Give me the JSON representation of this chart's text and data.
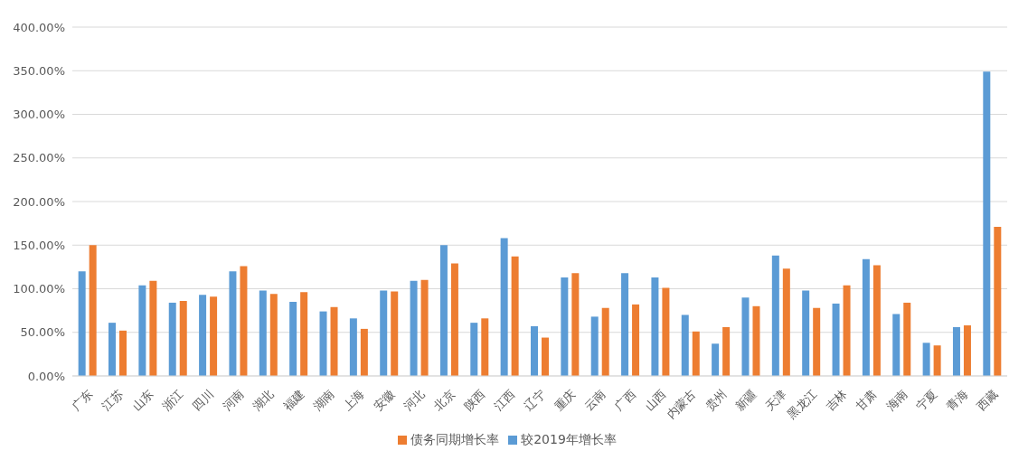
{
  "chart_data": {
    "type": "bar",
    "categories": [
      "广东",
      "江苏",
      "山东",
      "浙江",
      "四川",
      "河南",
      "湖北",
      "福建",
      "湖南",
      "上海",
      "安徽",
      "河北",
      "北京",
      "陕西",
      "江西",
      "辽宁",
      "重庆",
      "云南",
      "广西",
      "山西",
      "内蒙古",
      "贵州",
      "新疆",
      "天津",
      "黑龙江",
      "吉林",
      "甘肃",
      "海南",
      "宁夏",
      "青海",
      "西藏"
    ],
    "series": [
      {
        "name": "较2019年增长率",
        "color": "#5b9bd5",
        "values": [
          120,
          61,
          104,
          84,
          93,
          120,
          98,
          85,
          74,
          66,
          98,
          109,
          150,
          61,
          158,
          57,
          113,
          68,
          118,
          113,
          70,
          37,
          90,
          138,
          98,
          83,
          134,
          71,
          38,
          56,
          349
        ]
      },
      {
        "name": "债务同期增长率",
        "color": "#ed7d31",
        "values": [
          150,
          52,
          109,
          86,
          91,
          126,
          94,
          96,
          79,
          54,
          97,
          110,
          129,
          66,
          137,
          44,
          118,
          78,
          82,
          101,
          51,
          56,
          80,
          123,
          78,
          104,
          127,
          84,
          35,
          58,
          171
        ]
      }
    ],
    "ylim": [
      0,
      400
    ],
    "yticks": [
      {
        "value": 0,
        "label": "0.00%"
      },
      {
        "value": 50,
        "label": "50.00%"
      },
      {
        "value": 100,
        "label": "100.00%"
      },
      {
        "value": 150,
        "label": "150.00%"
      },
      {
        "value": 200,
        "label": "200.00%"
      },
      {
        "value": 250,
        "label": "250.00%"
      },
      {
        "value": 300,
        "label": "300.00%"
      },
      {
        "value": 350,
        "label": "350.00%"
      },
      {
        "value": 400,
        "label": "400.00%"
      }
    ],
    "grid": "y",
    "legend": "bottom"
  }
}
